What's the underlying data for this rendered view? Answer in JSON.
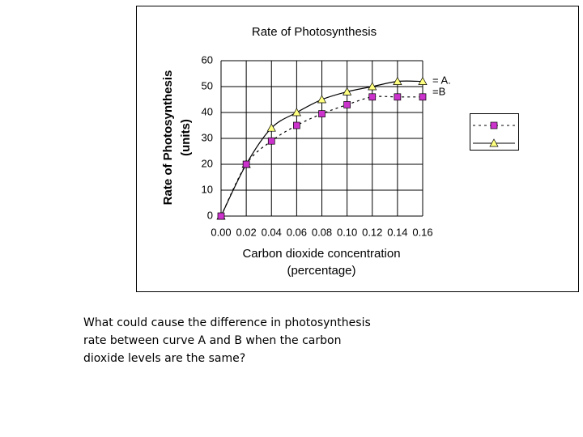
{
  "chart_data": {
    "type": "line",
    "title": "Rate of Photosynthesis",
    "xlabel": [
      "Carbon dioxide concentration",
      "(percentage)"
    ],
    "ylabel": [
      "Rate of Photosynthesis",
      "(units)"
    ],
    "x": [
      0,
      0.02,
      0.04,
      0.06,
      0.08,
      0.1,
      0.12,
      0.14,
      0.16
    ],
    "series": [
      {
        "name": "= A.",
        "color": "#ffff80",
        "marker": "triangle",
        "line": "solid",
        "values": [
          0,
          20,
          34,
          40,
          45,
          48,
          50,
          52,
          52
        ]
      },
      {
        "name": "=B",
        "color": "#cc33cc",
        "marker": "square",
        "line": "dotted",
        "values": [
          0,
          20,
          29,
          35,
          39.5,
          43,
          46,
          46,
          46
        ]
      }
    ],
    "xlim": [
      0,
      0.16
    ],
    "xticks": [
      {
        "value": 0,
        "label": "0.00"
      },
      {
        "value": 0.02,
        "label": "0.02"
      },
      {
        "value": 0.04,
        "label": "0.04"
      },
      {
        "value": 0.06,
        "label": "0.06"
      },
      {
        "value": 0.08,
        "label": "0.08"
      },
      {
        "value": 0.1,
        "label": "0.10"
      },
      {
        "value": 0.12,
        "label": "0.12"
      },
      {
        "value": 0.14,
        "label": "0.14"
      },
      {
        "value": 0.16,
        "label": "0.16"
      }
    ],
    "ylim": [
      0,
      60
    ],
    "yticks": [
      0,
      10,
      20,
      30,
      40,
      50,
      60
    ],
    "grid": true
  },
  "question": [
    "What could cause the difference in photosynthesis",
    "rate between curve A and B when the carbon",
    "dioxide levels are the same?"
  ]
}
